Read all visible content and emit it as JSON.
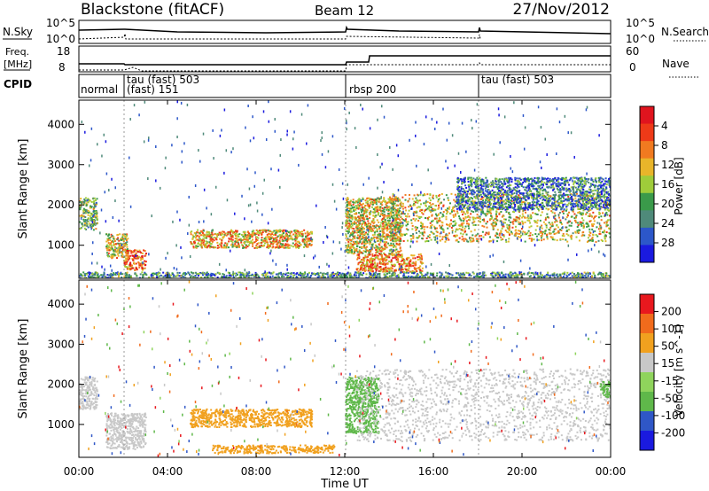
{
  "header": {
    "station": "Blackstone (fitACF)",
    "beam": "Beam 12",
    "date": "27/Nov/2012"
  },
  "left_labels": {
    "nsky": "N.Sky",
    "freq_line1": "Freq.",
    "freq_line2": "[MHz]",
    "cpid": "CPID"
  },
  "right_labels": {
    "nsearch": "N.Search",
    "nave": "Nave"
  },
  "noise_panel": {
    "left_ticks": [
      "10^5",
      "10^0"
    ],
    "right_ticks": [
      "10^5",
      "10^0"
    ]
  },
  "freq_panel": {
    "left_ticks": [
      "18",
      "8"
    ],
    "right_ticks": [
      "60",
      "0"
    ]
  },
  "cpid_segments": [
    {
      "label": "normal",
      "start_hour": 0.0
    },
    {
      "label": "tau (fast) 503",
      "sublabel": "(fast) 151",
      "start_hour": 2.0
    },
    {
      "label": "rbsp 200",
      "start_hour": 12.0
    },
    {
      "label": "tau (fast) 503",
      "start_hour": 18.0
    }
  ],
  "x_axis": {
    "label": "Time UT",
    "ticks": [
      "00:00",
      "04:00",
      "08:00",
      "12:00",
      "16:00",
      "20:00",
      "00:00"
    ],
    "range_hours": [
      0,
      24
    ]
  },
  "y_axis": {
    "label": "Slant Range [km]",
    "ticks": [
      "1000",
      "2000",
      "3000",
      "4000"
    ],
    "range_km": [
      180,
      4600
    ]
  },
  "power_colorbar": {
    "label": "Power [dB]",
    "ticks": [
      "4",
      "8",
      "12",
      "16",
      "20",
      "24",
      "28"
    ],
    "colors": [
      "#1a1adf",
      "#2c57c9",
      "#4f8a7a",
      "#3a9a4a",
      "#9fcc3a",
      "#e8b52a",
      "#f07a20",
      "#ee3a18",
      "#e0141e"
    ]
  },
  "velocity_colorbar": {
    "label": "Velocity [m s^-1]",
    "ticks": [
      "200",
      "100",
      "50",
      "15",
      "-15",
      "-50",
      "-100",
      "-200"
    ],
    "colors": [
      "#1a1adf",
      "#2f57c7",
      "#5fb84a",
      "#8fd45c",
      "#c8c8c8",
      "#f1a11f",
      "#f16b1c",
      "#e8181e"
    ]
  },
  "chart_data": [
    {
      "type": "heatmap",
      "title": "Power",
      "xlabel": "Time UT",
      "ylabel": "Slant Range [km]",
      "colorbar_label": "Power [dB]",
      "xlim_hours": [
        0,
        24
      ],
      "ylim_km": [
        180,
        4600
      ],
      "echo_regions": [
        {
          "t_start": 0.0,
          "t_end": 0.8,
          "r_min": 1400,
          "r_max": 2200,
          "power_db": 14
        },
        {
          "t_start": 1.2,
          "t_end": 2.2,
          "r_min": 700,
          "r_max": 1300,
          "power_db": 18
        },
        {
          "t_start": 2.0,
          "t_end": 3.0,
          "r_min": 400,
          "r_max": 900,
          "power_db": 24
        },
        {
          "t_start": 5.0,
          "t_end": 10.5,
          "r_min": 950,
          "r_max": 1400,
          "power_db": 20
        },
        {
          "t_start": 12.0,
          "t_end": 14.5,
          "r_min": 800,
          "r_max": 2200,
          "power_db": 18
        },
        {
          "t_start": 12.5,
          "t_end": 15.5,
          "r_min": 350,
          "r_max": 800,
          "power_db": 22
        },
        {
          "t_start": 14.0,
          "t_end": 24.0,
          "r_min": 1100,
          "r_max": 2300,
          "power_db": 18
        },
        {
          "t_start": 17.0,
          "t_end": 24.0,
          "r_min": 1900,
          "r_max": 2700,
          "power_db": 8
        },
        {
          "t_start": 0.0,
          "t_end": 24.0,
          "r_min": 200,
          "r_max": 350,
          "power_db": 10
        }
      ]
    },
    {
      "type": "heatmap",
      "title": "Velocity",
      "xlabel": "Time UT",
      "ylabel": "Slant Range [km]",
      "colorbar_label": "Velocity [m s^-1]",
      "xlim_hours": [
        0,
        24
      ],
      "ylim_km": [
        180,
        4600
      ],
      "echo_regions": [
        {
          "t_start": 0.0,
          "t_end": 0.8,
          "r_min": 1400,
          "r_max": 2200,
          "velocity": 0
        },
        {
          "t_start": 1.2,
          "t_end": 3.0,
          "r_min": 400,
          "r_max": 1300,
          "velocity": 0
        },
        {
          "t_start": 5.0,
          "t_end": 10.5,
          "r_min": 950,
          "r_max": 1400,
          "velocity": -40
        },
        {
          "t_start": 12.0,
          "t_end": 13.5,
          "r_min": 800,
          "r_max": 2200,
          "velocity": 40
        },
        {
          "t_start": 12.5,
          "t_end": 24.0,
          "r_min": 600,
          "r_max": 2400,
          "velocity": 0
        },
        {
          "t_start": 6.0,
          "t_end": 11.5,
          "r_min": 300,
          "r_max": 500,
          "velocity": -40
        },
        {
          "t_start": 23.5,
          "t_end": 24.0,
          "r_min": 1700,
          "r_max": 2100,
          "velocity": 40
        }
      ]
    }
  ]
}
